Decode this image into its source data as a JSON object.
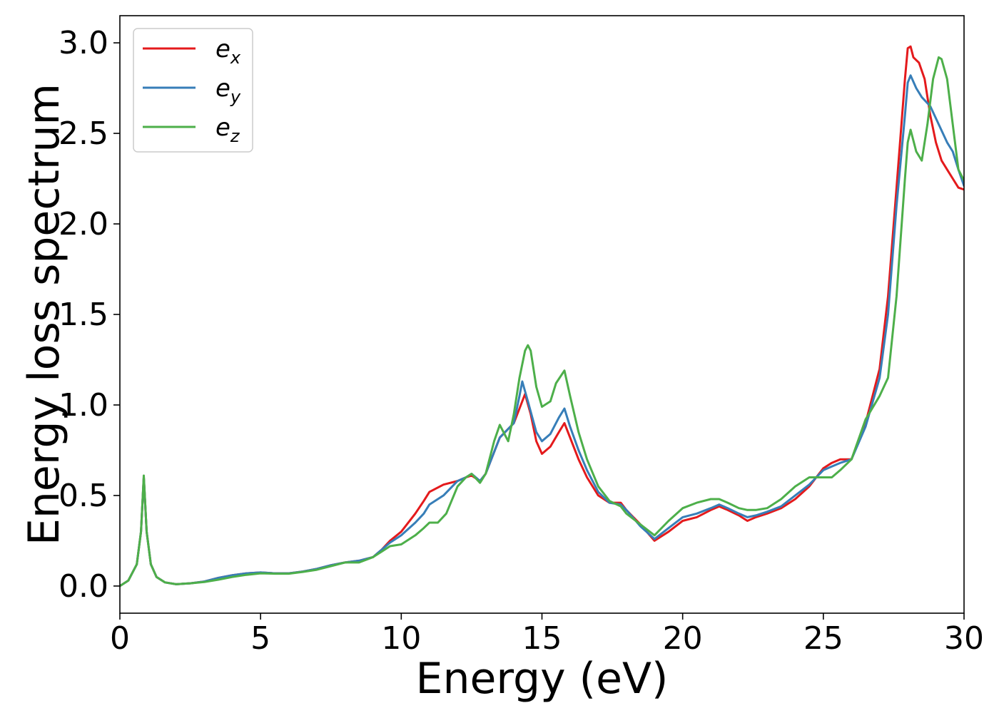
{
  "chart_data": {
    "type": "line",
    "xlabel": "Energy (eV)",
    "ylabel": "Energy loss spectrum",
    "xlim": [
      0,
      30
    ],
    "ylim": [
      -0.15,
      3.15
    ],
    "xticks": [
      0,
      5,
      10,
      15,
      20,
      25,
      30
    ],
    "yticks": [
      0.0,
      0.5,
      1.0,
      1.5,
      2.0,
      2.5,
      3.0
    ],
    "xtick_labels": [
      "0",
      "5",
      "10",
      "15",
      "20",
      "25",
      "30"
    ],
    "ytick_labels": [
      "0.0",
      "0.5",
      "1.0",
      "1.5",
      "2.0",
      "2.5",
      "3.0"
    ],
    "grid": false,
    "legend_position": "top-left",
    "series": [
      {
        "name": "e",
        "sub": "x",
        "color": "#e41a1c",
        "x": [
          0,
          0.3,
          0.6,
          0.75,
          0.85,
          0.95,
          1.1,
          1.3,
          1.6,
          2.0,
          2.5,
          3.0,
          3.5,
          4.0,
          4.5,
          5.0,
          5.5,
          6.0,
          6.5,
          7.0,
          7.5,
          8.0,
          8.5,
          9.0,
          9.3,
          9.6,
          10.0,
          10.5,
          10.8,
          11.0,
          11.5,
          12.0,
          12.3,
          12.5,
          12.8,
          13.0,
          13.5,
          14.0,
          14.2,
          14.4,
          14.6,
          14.8,
          15.0,
          15.3,
          15.6,
          15.8,
          16.0,
          16.3,
          16.6,
          17.0,
          17.4,
          17.8,
          18.0,
          18.5,
          19.0,
          19.5,
          20.0,
          20.5,
          21.0,
          21.3,
          21.6,
          22.0,
          22.3,
          22.6,
          23.0,
          23.5,
          24.0,
          24.5,
          25.0,
          25.3,
          25.6,
          26.0,
          26.5,
          27.0,
          27.3,
          27.6,
          27.9,
          28.0,
          28.1,
          28.2,
          28.4,
          28.6,
          28.8,
          29.0,
          29.2,
          29.4,
          29.6,
          29.8,
          30.0
        ],
        "y": [
          0.0,
          0.03,
          0.12,
          0.3,
          0.6,
          0.3,
          0.12,
          0.05,
          0.02,
          0.01,
          0.015,
          0.025,
          0.045,
          0.06,
          0.07,
          0.075,
          0.07,
          0.07,
          0.08,
          0.095,
          0.115,
          0.13,
          0.14,
          0.16,
          0.2,
          0.25,
          0.3,
          0.4,
          0.47,
          0.52,
          0.56,
          0.58,
          0.6,
          0.61,
          0.58,
          0.62,
          0.82,
          0.9,
          0.98,
          1.06,
          0.95,
          0.8,
          0.73,
          0.77,
          0.85,
          0.9,
          0.82,
          0.7,
          0.6,
          0.5,
          0.46,
          0.46,
          0.42,
          0.34,
          0.25,
          0.3,
          0.36,
          0.38,
          0.42,
          0.44,
          0.42,
          0.39,
          0.36,
          0.38,
          0.4,
          0.43,
          0.48,
          0.55,
          0.65,
          0.68,
          0.7,
          0.7,
          0.9,
          1.2,
          1.6,
          2.2,
          2.8,
          2.97,
          2.98,
          2.92,
          2.89,
          2.8,
          2.6,
          2.45,
          2.35,
          2.3,
          2.25,
          2.2,
          2.19
        ]
      },
      {
        "name": "e",
        "sub": "y",
        "color": "#377eb8",
        "x": [
          0,
          0.3,
          0.6,
          0.75,
          0.85,
          0.95,
          1.1,
          1.3,
          1.6,
          2.0,
          2.5,
          3.0,
          3.5,
          4.0,
          4.5,
          5.0,
          5.5,
          6.0,
          6.5,
          7.0,
          7.5,
          8.0,
          8.5,
          9.0,
          9.3,
          9.6,
          10.0,
          10.5,
          10.8,
          11.0,
          11.5,
          12.0,
          12.3,
          12.5,
          12.8,
          13.0,
          13.5,
          14.0,
          14.2,
          14.3,
          14.5,
          14.8,
          15.0,
          15.3,
          15.6,
          15.8,
          16.0,
          16.3,
          16.6,
          17.0,
          17.4,
          17.8,
          18.0,
          18.5,
          19.0,
          19.5,
          20.0,
          20.5,
          21.0,
          21.3,
          21.6,
          22.0,
          22.3,
          22.6,
          23.0,
          23.5,
          24.0,
          24.5,
          25.0,
          25.3,
          25.6,
          26.0,
          26.5,
          27.0,
          27.3,
          27.6,
          27.9,
          28.0,
          28.1,
          28.3,
          28.5,
          28.8,
          29.1,
          29.4,
          29.6,
          29.8,
          30.0
        ],
        "y": [
          0.0,
          0.03,
          0.12,
          0.3,
          0.6,
          0.3,
          0.12,
          0.05,
          0.02,
          0.01,
          0.015,
          0.025,
          0.045,
          0.06,
          0.07,
          0.075,
          0.07,
          0.07,
          0.08,
          0.095,
          0.115,
          0.13,
          0.14,
          0.16,
          0.2,
          0.24,
          0.28,
          0.35,
          0.4,
          0.45,
          0.5,
          0.58,
          0.6,
          0.62,
          0.58,
          0.62,
          0.82,
          0.9,
          1.05,
          1.13,
          1.02,
          0.85,
          0.8,
          0.84,
          0.93,
          0.98,
          0.88,
          0.75,
          0.64,
          0.52,
          0.46,
          0.45,
          0.42,
          0.33,
          0.26,
          0.32,
          0.38,
          0.4,
          0.43,
          0.45,
          0.43,
          0.4,
          0.38,
          0.39,
          0.41,
          0.44,
          0.5,
          0.56,
          0.64,
          0.66,
          0.68,
          0.7,
          0.88,
          1.15,
          1.5,
          2.1,
          2.6,
          2.78,
          2.82,
          2.75,
          2.7,
          2.65,
          2.55,
          2.45,
          2.4,
          2.3,
          2.21
        ]
      },
      {
        "name": "e",
        "sub": "z",
        "color": "#4daf4a",
        "x": [
          0,
          0.3,
          0.6,
          0.75,
          0.85,
          0.95,
          1.1,
          1.3,
          1.6,
          2.0,
          2.5,
          3.0,
          3.5,
          4.0,
          4.5,
          5.0,
          5.5,
          6.0,
          6.5,
          7.0,
          7.5,
          8.0,
          8.5,
          9.0,
          9.3,
          9.6,
          10.0,
          10.5,
          10.8,
          11.0,
          11.3,
          11.6,
          12.0,
          12.3,
          12.5,
          12.8,
          13.0,
          13.3,
          13.5,
          13.8,
          14.0,
          14.2,
          14.4,
          14.5,
          14.6,
          14.8,
          15.0,
          15.3,
          15.5,
          15.8,
          16.0,
          16.3,
          16.6,
          17.0,
          17.4,
          17.8,
          18.0,
          18.5,
          19.0,
          19.5,
          20.0,
          20.5,
          21.0,
          21.3,
          21.6,
          22.0,
          22.3,
          22.6,
          23.0,
          23.5,
          24.0,
          24.5,
          25.0,
          25.3,
          25.6,
          26.0,
          26.5,
          27.0,
          27.3,
          27.6,
          27.9,
          28.0,
          28.1,
          28.3,
          28.5,
          28.7,
          28.9,
          29.1,
          29.2,
          29.4,
          29.6,
          29.8,
          30.0
        ],
        "y": [
          0.0,
          0.03,
          0.12,
          0.3,
          0.61,
          0.3,
          0.12,
          0.05,
          0.02,
          0.01,
          0.015,
          0.022,
          0.035,
          0.05,
          0.062,
          0.07,
          0.068,
          0.068,
          0.078,
          0.09,
          0.11,
          0.13,
          0.13,
          0.16,
          0.19,
          0.22,
          0.23,
          0.28,
          0.32,
          0.35,
          0.35,
          0.4,
          0.55,
          0.6,
          0.62,
          0.57,
          0.62,
          0.8,
          0.89,
          0.8,
          0.95,
          1.15,
          1.3,
          1.33,
          1.3,
          1.1,
          0.99,
          1.02,
          1.12,
          1.19,
          1.05,
          0.85,
          0.7,
          0.55,
          0.47,
          0.44,
          0.4,
          0.34,
          0.28,
          0.36,
          0.43,
          0.46,
          0.48,
          0.48,
          0.46,
          0.43,
          0.42,
          0.42,
          0.43,
          0.48,
          0.55,
          0.6,
          0.6,
          0.6,
          0.64,
          0.7,
          0.92,
          1.05,
          1.15,
          1.6,
          2.25,
          2.45,
          2.52,
          2.4,
          2.35,
          2.55,
          2.8,
          2.92,
          2.91,
          2.8,
          2.55,
          2.3,
          2.24
        ]
      }
    ]
  },
  "colors": {
    "background": "#ffffff",
    "axis": "#000000",
    "legend_border": "#cccccc"
  }
}
